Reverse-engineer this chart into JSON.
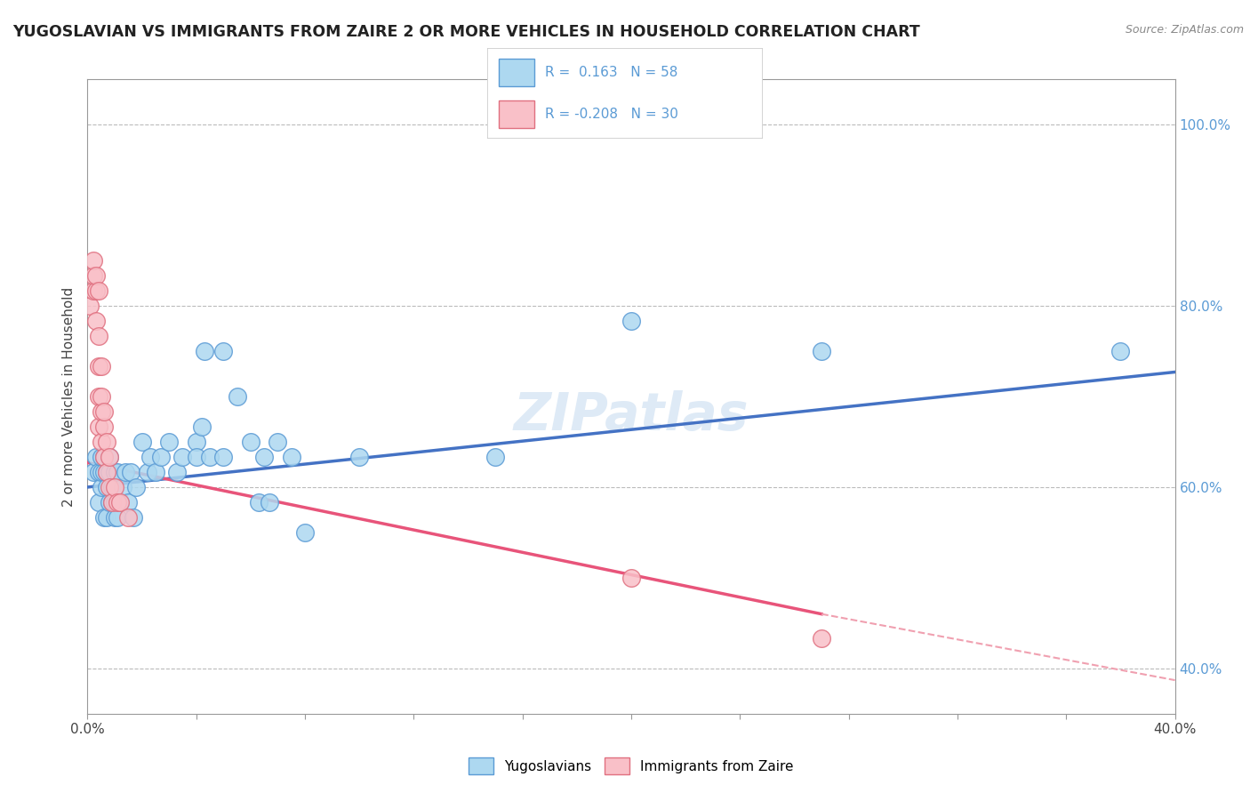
{
  "title": "YUGOSLAVIAN VS IMMIGRANTS FROM ZAIRE 2 OR MORE VEHICLES IN HOUSEHOLD CORRELATION CHART",
  "source": "Source: ZipAtlas.com",
  "ylabel": "2 or more Vehicles in Household",
  "xlim": [
    0.0,
    0.4
  ],
  "ylim": [
    0.35,
    1.05
  ],
  "color_yugoslavians": "#ADD8F0",
  "color_yugoslavians_edge": "#5B9BD5",
  "color_zaire": "#F9C0C8",
  "color_zaire_edge": "#E07080",
  "color_line_blue": "#4472C4",
  "color_line_pink": "#E8547A",
  "color_line_pink_dash": "#F0A0B0",
  "watermark": "ZIPatlas",
  "blue_scatter": [
    [
      0.002,
      0.617
    ],
    [
      0.003,
      0.633
    ],
    [
      0.004,
      0.583
    ],
    [
      0.004,
      0.617
    ],
    [
      0.005,
      0.6
    ],
    [
      0.005,
      0.617
    ],
    [
      0.005,
      0.633
    ],
    [
      0.006,
      0.567
    ],
    [
      0.006,
      0.617
    ],
    [
      0.006,
      0.633
    ],
    [
      0.007,
      0.567
    ],
    [
      0.007,
      0.6
    ],
    [
      0.007,
      0.617
    ],
    [
      0.008,
      0.583
    ],
    [
      0.008,
      0.617
    ],
    [
      0.008,
      0.633
    ],
    [
      0.009,
      0.583
    ],
    [
      0.009,
      0.6
    ],
    [
      0.01,
      0.567
    ],
    [
      0.01,
      0.583
    ],
    [
      0.01,
      0.617
    ],
    [
      0.011,
      0.567
    ],
    [
      0.011,
      0.617
    ],
    [
      0.012,
      0.583
    ],
    [
      0.013,
      0.6
    ],
    [
      0.014,
      0.617
    ],
    [
      0.015,
      0.583
    ],
    [
      0.016,
      0.617
    ],
    [
      0.017,
      0.567
    ],
    [
      0.018,
      0.6
    ],
    [
      0.02,
      0.65
    ],
    [
      0.022,
      0.617
    ],
    [
      0.023,
      0.633
    ],
    [
      0.025,
      0.617
    ],
    [
      0.027,
      0.633
    ],
    [
      0.03,
      0.65
    ],
    [
      0.033,
      0.617
    ],
    [
      0.035,
      0.633
    ],
    [
      0.04,
      0.65
    ],
    [
      0.04,
      0.633
    ],
    [
      0.042,
      0.667
    ],
    [
      0.043,
      0.75
    ],
    [
      0.045,
      0.633
    ],
    [
      0.05,
      0.75
    ],
    [
      0.05,
      0.633
    ],
    [
      0.055,
      0.7
    ],
    [
      0.06,
      0.65
    ],
    [
      0.063,
      0.583
    ],
    [
      0.065,
      0.633
    ],
    [
      0.067,
      0.583
    ],
    [
      0.07,
      0.65
    ],
    [
      0.075,
      0.633
    ],
    [
      0.08,
      0.55
    ],
    [
      0.1,
      0.633
    ],
    [
      0.15,
      0.633
    ],
    [
      0.2,
      0.783
    ],
    [
      0.27,
      0.75
    ],
    [
      0.38,
      0.75
    ]
  ],
  "pink_scatter": [
    [
      0.001,
      0.8
    ],
    [
      0.002,
      0.817
    ],
    [
      0.002,
      0.833
    ],
    [
      0.002,
      0.85
    ],
    [
      0.003,
      0.783
    ],
    [
      0.003,
      0.817
    ],
    [
      0.003,
      0.833
    ],
    [
      0.004,
      0.667
    ],
    [
      0.004,
      0.7
    ],
    [
      0.004,
      0.733
    ],
    [
      0.004,
      0.767
    ],
    [
      0.004,
      0.817
    ],
    [
      0.005,
      0.65
    ],
    [
      0.005,
      0.683
    ],
    [
      0.005,
      0.7
    ],
    [
      0.005,
      0.733
    ],
    [
      0.006,
      0.633
    ],
    [
      0.006,
      0.667
    ],
    [
      0.006,
      0.683
    ],
    [
      0.007,
      0.617
    ],
    [
      0.007,
      0.65
    ],
    [
      0.008,
      0.6
    ],
    [
      0.008,
      0.633
    ],
    [
      0.009,
      0.583
    ],
    [
      0.01,
      0.6
    ],
    [
      0.011,
      0.583
    ],
    [
      0.012,
      0.583
    ],
    [
      0.015,
      0.567
    ],
    [
      0.2,
      0.5
    ],
    [
      0.27,
      0.433
    ]
  ],
  "blue_line": [
    [
      0.0,
      0.6
    ],
    [
      0.4,
      0.727
    ]
  ],
  "pink_line_solid": [
    [
      0.0,
      0.627
    ],
    [
      0.27,
      0.46
    ]
  ],
  "pink_line_dash": [
    [
      0.27,
      0.46
    ],
    [
      0.4,
      0.387
    ]
  ]
}
